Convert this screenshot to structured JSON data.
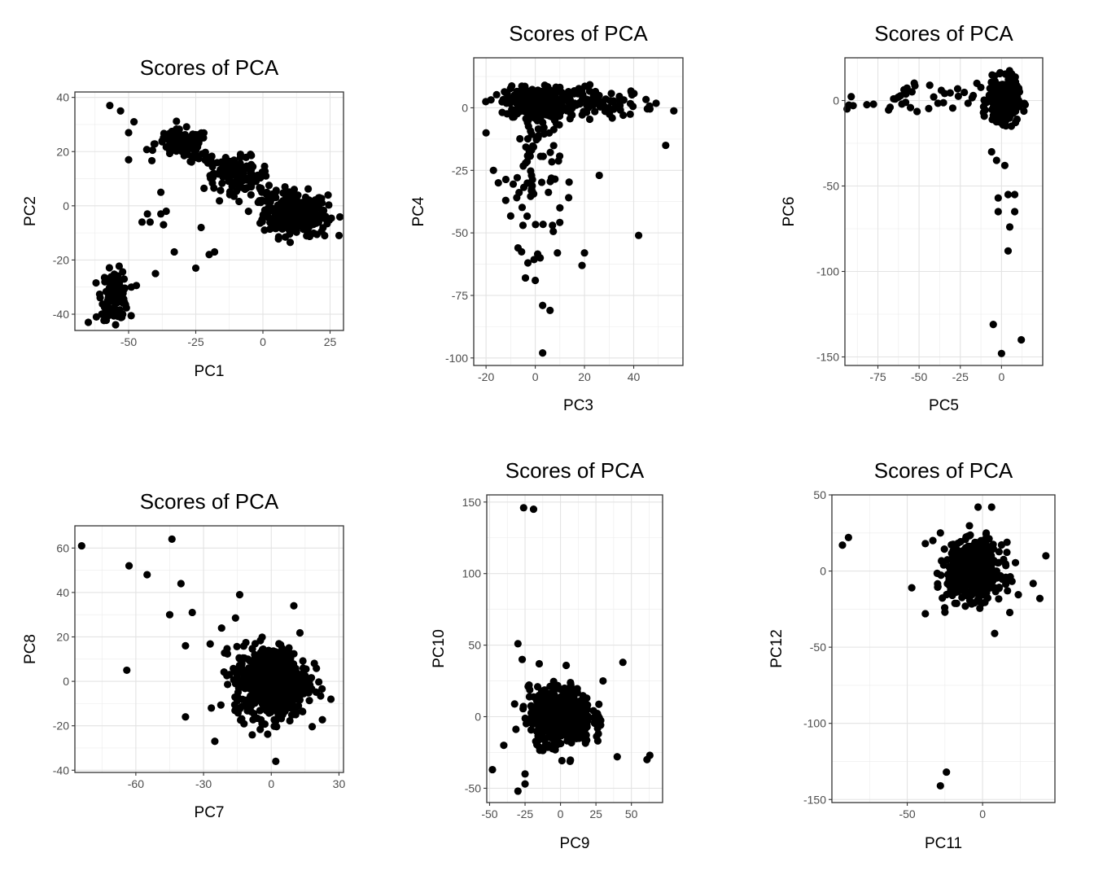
{
  "chart_data": [
    {
      "type": "scatter",
      "title": "Scores of PCA",
      "xlabel": "PC1",
      "ylabel": "PC2",
      "xlim": [
        -70,
        30
      ],
      "ylim": [
        -46,
        42
      ],
      "xticks": [
        -50,
        -25,
        0,
        25
      ],
      "yticks": [
        -40,
        -20,
        0,
        20,
        40
      ],
      "grid": true,
      "clusters": [
        {
          "cx": 12,
          "cy": -3,
          "sx": 6,
          "sy": 4,
          "n": 260
        },
        {
          "cx": -10,
          "cy": 12,
          "sx": 6,
          "sy": 3,
          "n": 80
        },
        {
          "cx": -30,
          "cy": 23,
          "sx": 5,
          "sy": 2.5,
          "n": 110
        },
        {
          "cx": -55,
          "cy": -33,
          "sx": 2.5,
          "sy": 4.5,
          "n": 110
        }
      ],
      "points": [
        [
          -57,
          37
        ],
        [
          -53,
          35
        ],
        [
          -50,
          27
        ],
        [
          -50,
          17
        ],
        [
          -48,
          31
        ],
        [
          -40,
          -25
        ],
        [
          -38,
          5
        ],
        [
          -33,
          -17
        ],
        [
          -25,
          -23
        ],
        [
          -23,
          -8
        ],
        [
          -20,
          -18
        ],
        [
          -18,
          -17
        ],
        [
          -45,
          -6
        ],
        [
          -43,
          -3
        ],
        [
          -42,
          -6
        ],
        [
          -38,
          -3
        ],
        [
          -37,
          -7
        ],
        [
          -36,
          -2
        ],
        [
          -60,
          -40
        ],
        [
          -62,
          -41
        ],
        [
          -65,
          -43
        ]
      ]
    },
    {
      "type": "scatter",
      "title": "Scores of PCA",
      "xlabel": "PC3",
      "ylabel": "PC4",
      "xlim": [
        -25,
        60
      ],
      "ylim": [
        -103,
        20
      ],
      "xticks": [
        -20,
        0,
        20,
        40
      ],
      "yticks": [
        -100,
        -75,
        -50,
        -25,
        0
      ],
      "grid": true,
      "clusters": [
        {
          "cx": 0,
          "cy": 2,
          "sx": 6,
          "sy": 3,
          "n": 320
        },
        {
          "cx": 25,
          "cy": 2,
          "sx": 12,
          "sy": 3,
          "n": 110
        },
        {
          "cx": 0,
          "cy": -25,
          "sx": 5,
          "sy": 15,
          "n": 70
        }
      ],
      "points": [
        [
          42,
          -51
        ],
        [
          53,
          -15
        ],
        [
          3,
          -98
        ],
        [
          3,
          -79
        ],
        [
          6,
          -81
        ],
        [
          0,
          -69
        ],
        [
          -4,
          -68
        ],
        [
          -3,
          -62
        ],
        [
          -7,
          -56
        ],
        [
          -5,
          -47
        ],
        [
          2,
          -60
        ],
        [
          9,
          -58
        ],
        [
          20,
          -58
        ],
        [
          19,
          -63
        ],
        [
          7,
          -47
        ],
        [
          10,
          -40
        ],
        [
          -12,
          -37
        ],
        [
          -15,
          -30
        ],
        [
          -20,
          -10
        ],
        [
          -17,
          -25
        ],
        [
          26,
          -27
        ]
      ]
    },
    {
      "type": "scatter",
      "title": "Scores of PCA",
      "xlabel": "PC5",
      "ylabel": "PC6",
      "xlim": [
        -95,
        25
      ],
      "ylim": [
        -155,
        25
      ],
      "xticks": [
        -75,
        -50,
        -25,
        0
      ],
      "yticks": [
        -150,
        -100,
        -50,
        0
      ],
      "grid": true,
      "clusters": [
        {
          "cx": 1,
          "cy": 0,
          "sx": 4.5,
          "sy": 6,
          "n": 320
        },
        {
          "cx": -55,
          "cy": 0,
          "sx": 20,
          "sy": 5,
          "n": 40
        }
      ],
      "points": [
        [
          -5,
          -131
        ],
        [
          12,
          -140
        ],
        [
          0,
          -148
        ],
        [
          -2,
          -57
        ],
        [
          4,
          -55
        ],
        [
          8,
          -65
        ],
        [
          4,
          -88
        ],
        [
          -2,
          -65
        ],
        [
          5,
          -74
        ],
        [
          8,
          -55
        ],
        [
          -3,
          -35
        ],
        [
          2,
          -38
        ],
        [
          -6,
          -30
        ],
        [
          -90,
          -3
        ]
      ]
    },
    {
      "type": "scatter",
      "title": "Scores of PCA",
      "xlabel": "PC7",
      "ylabel": "PC8",
      "xlim": [
        -87,
        32
      ],
      "ylim": [
        -41,
        70
      ],
      "xticks": [
        -60,
        -30,
        0,
        30
      ],
      "yticks": [
        -40,
        -20,
        0,
        20,
        40,
        60
      ],
      "grid": true,
      "clusters": [
        {
          "cx": 0,
          "cy": 0,
          "sx": 8,
          "sy": 8,
          "n": 650
        }
      ],
      "points": [
        [
          -84,
          61
        ],
        [
          -63,
          52
        ],
        [
          -55,
          48
        ],
        [
          -44,
          64
        ],
        [
          -40,
          44
        ],
        [
          -45,
          30
        ],
        [
          -35,
          31
        ],
        [
          -64,
          5
        ],
        [
          -38,
          -16
        ],
        [
          -38,
          16
        ],
        [
          -25,
          -27
        ],
        [
          2,
          -36
        ],
        [
          -22,
          24
        ],
        [
          -14,
          39
        ],
        [
          10,
          34
        ]
      ]
    },
    {
      "type": "scatter",
      "title": "Scores of PCA",
      "xlabel": "PC9",
      "ylabel": "PC10",
      "xlim": [
        -52,
        72
      ],
      "ylim": [
        -60,
        155
      ],
      "xticks": [
        -50,
        -25,
        0,
        25,
        50
      ],
      "yticks": [
        -50,
        0,
        50,
        100,
        150
      ],
      "grid": true,
      "clusters": [
        {
          "cx": 0,
          "cy": 0,
          "sx": 11,
          "sy": 10,
          "n": 550
        }
      ],
      "points": [
        [
          -26,
          146
        ],
        [
          -19,
          145
        ],
        [
          -30,
          51
        ],
        [
          -27,
          40
        ],
        [
          -48,
          -37
        ],
        [
          -30,
          -52
        ],
        [
          -25,
          -47
        ],
        [
          -25,
          -40
        ],
        [
          63,
          -27
        ],
        [
          61,
          -30
        ],
        [
          44,
          38
        ],
        [
          40,
          -28
        ],
        [
          -40,
          -20
        ],
        [
          -15,
          37
        ],
        [
          30,
          25
        ]
      ]
    },
    {
      "type": "scatter",
      "title": "Scores of PCA",
      "xlabel": "PC11",
      "ylabel": "PC12",
      "xlim": [
        -100,
        48
      ],
      "ylim": [
        -152,
        50
      ],
      "xticks": [
        -50,
        0
      ],
      "yticks": [
        -150,
        -100,
        -50,
        0,
        50
      ],
      "grid": true,
      "clusters": [
        {
          "cx": -5,
          "cy": 0,
          "sx": 9,
          "sy": 9,
          "n": 600
        }
      ],
      "points": [
        [
          -93,
          17
        ],
        [
          -89,
          22
        ],
        [
          -28,
          -141
        ],
        [
          -24,
          -132
        ],
        [
          -47,
          -11
        ],
        [
          -38,
          18
        ],
        [
          -33,
          20
        ],
        [
          -28,
          25
        ],
        [
          -38,
          -28
        ],
        [
          -3,
          42
        ],
        [
          6,
          42
        ],
        [
          8,
          -41
        ],
        [
          42,
          10
        ],
        [
          38,
          -18
        ],
        [
          -25,
          -27
        ]
      ]
    }
  ]
}
